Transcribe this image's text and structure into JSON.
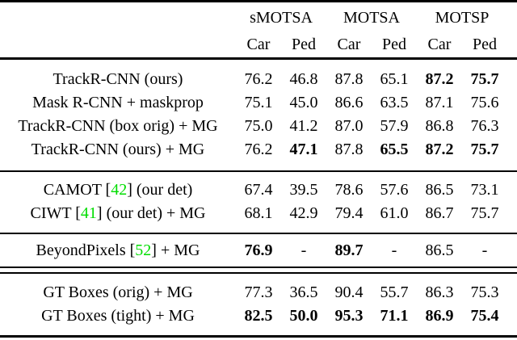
{
  "table": {
    "citation_color": "#00dd00",
    "col_groups": [
      {
        "label": "sMOTSA"
      },
      {
        "label": "MOTSA"
      },
      {
        "label": "MOTSP"
      }
    ],
    "sub_headers": [
      "Car",
      "Ped",
      "Car",
      "Ped",
      "Car",
      "Ped"
    ],
    "sections": [
      {
        "rows": [
          {
            "label": {
              "pre": "TrackR-CNN (ours)"
            },
            "cells": [
              {
                "v": "76.2"
              },
              {
                "v": "46.8"
              },
              {
                "v": "87.8"
              },
              {
                "v": "65.1"
              },
              {
                "v": "87.2",
                "b": true
              },
              {
                "v": "75.7",
                "b": true
              }
            ]
          },
          {
            "label": {
              "pre": "Mask R-CNN + maskprop"
            },
            "cells": [
              {
                "v": "75.1"
              },
              {
                "v": "45.0"
              },
              {
                "v": "86.6"
              },
              {
                "v": "63.5"
              },
              {
                "v": "87.1"
              },
              {
                "v": "75.6"
              }
            ]
          },
          {
            "label": {
              "pre": "TrackR-CNN (box orig) + MG"
            },
            "cells": [
              {
                "v": "75.0"
              },
              {
                "v": "41.2"
              },
              {
                "v": "87.0"
              },
              {
                "v": "57.9"
              },
              {
                "v": "86.8"
              },
              {
                "v": "76.3"
              }
            ]
          },
          {
            "label": {
              "pre": "TrackR-CNN (ours) + MG"
            },
            "cells": [
              {
                "v": "76.2"
              },
              {
                "v": "47.1",
                "b": true
              },
              {
                "v": "87.8"
              },
              {
                "v": "65.5",
                "b": true
              },
              {
                "v": "87.2",
                "b": true
              },
              {
                "v": "75.7",
                "b": true
              }
            ]
          }
        ]
      },
      {
        "rows": [
          {
            "label": {
              "pre": "CAMOT [",
              "cite": "42",
              "post": "] (our det)"
            },
            "cells": [
              {
                "v": "67.4"
              },
              {
                "v": "39.5"
              },
              {
                "v": "78.6"
              },
              {
                "v": "57.6"
              },
              {
                "v": "86.5"
              },
              {
                "v": "73.1"
              }
            ]
          },
          {
            "label": {
              "pre": "CIWT [",
              "cite": "41",
              "post": "] (our det) + MG"
            },
            "cells": [
              {
                "v": "68.1"
              },
              {
                "v": "42.9"
              },
              {
                "v": "79.4"
              },
              {
                "v": "61.0"
              },
              {
                "v": "86.7"
              },
              {
                "v": "75.7"
              }
            ]
          }
        ]
      },
      {
        "rows": [
          {
            "label": {
              "pre": "BeyondPixels [",
              "cite": "52",
              "post": "] + MG"
            },
            "cells": [
              {
                "v": "76.9",
                "b": true
              },
              {
                "v": "-"
              },
              {
                "v": "89.7",
                "b": true
              },
              {
                "v": "-"
              },
              {
                "v": "86.5"
              },
              {
                "v": "-"
              }
            ]
          }
        ]
      },
      {
        "rows": [
          {
            "label": {
              "pre": "GT Boxes (orig) + MG"
            },
            "cells": [
              {
                "v": "77.3"
              },
              {
                "v": "36.5"
              },
              {
                "v": "90.4"
              },
              {
                "v": "55.7"
              },
              {
                "v": "86.3"
              },
              {
                "v": "75.3"
              }
            ]
          },
          {
            "label": {
              "pre": "GT Boxes (tight) + MG"
            },
            "cells": [
              {
                "v": "82.5",
                "b": true
              },
              {
                "v": "50.0",
                "b": true
              },
              {
                "v": "95.3",
                "b": true
              },
              {
                "v": "71.1",
                "b": true
              },
              {
                "v": "86.9",
                "b": true
              },
              {
                "v": "75.4",
                "b": true
              }
            ]
          }
        ]
      }
    ]
  }
}
